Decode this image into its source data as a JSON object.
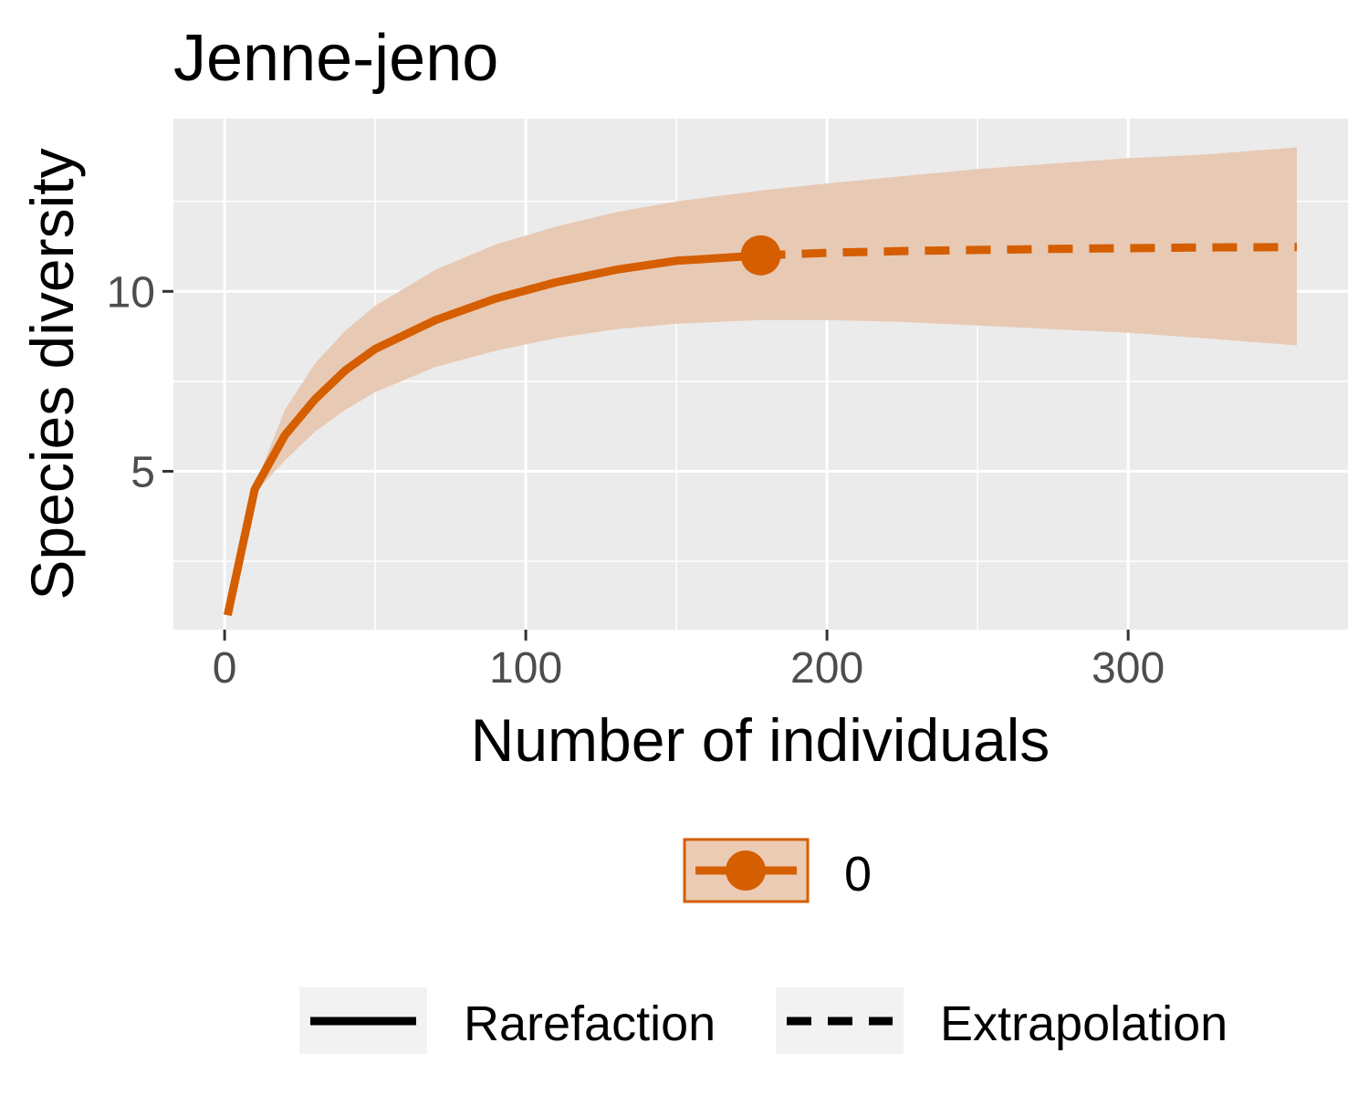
{
  "chart_data": {
    "type": "line",
    "title": "Jenne-jeno",
    "xlabel": "Number of individuals",
    "ylabel": "Species diversity",
    "xlim": [
      -17,
      373
    ],
    "ylim": [
      0.6,
      14.8
    ],
    "x_ticks": [
      0,
      100,
      200,
      300
    ],
    "x_tick_labels": [
      "0",
      "100",
      "200",
      "300"
    ],
    "y_ticks": [
      5,
      10
    ],
    "y_tick_labels": [
      "5",
      "10"
    ],
    "x_minor": [
      50,
      150,
      250
    ],
    "y_minor": [
      2.5,
      7.5,
      12.5
    ],
    "grid": true,
    "color": "#d55e00",
    "ribbon_color": "#e8c9b4",
    "panel_background": "#ebebeb",
    "series": [
      {
        "name": "0",
        "rarefaction": {
          "x": [
            1,
            10,
            20,
            30,
            40,
            50,
            70,
            90,
            110,
            130,
            150,
            178
          ],
          "y": [
            1.0,
            4.5,
            6.0,
            7.0,
            7.8,
            8.4,
            9.2,
            9.8,
            10.25,
            10.6,
            10.85,
            11.0
          ]
        },
        "extrapolation": {
          "x": [
            178,
            200,
            225,
            250,
            275,
            300,
            325,
            356
          ],
          "y": [
            11.0,
            11.07,
            11.12,
            11.15,
            11.18,
            11.2,
            11.22,
            11.23
          ]
        },
        "ribbon": {
          "x": [
            1,
            10,
            20,
            30,
            40,
            50,
            70,
            90,
            110,
            130,
            150,
            178,
            200,
            225,
            250,
            275,
            300,
            325,
            356
          ],
          "lower": [
            1.0,
            4.4,
            5.3,
            6.1,
            6.7,
            7.2,
            7.9,
            8.35,
            8.7,
            8.95,
            9.1,
            9.2,
            9.2,
            9.15,
            9.05,
            8.95,
            8.85,
            8.7,
            8.5
          ],
          "upper": [
            1.0,
            4.6,
            6.7,
            8.0,
            8.9,
            9.6,
            10.6,
            11.3,
            11.8,
            12.2,
            12.5,
            12.8,
            13.0,
            13.2,
            13.4,
            13.55,
            13.7,
            13.8,
            14.0
          ]
        },
        "observed": {
          "x": 178,
          "y": 11.0
        }
      }
    ],
    "legend": {
      "position": "bottom",
      "assemblage_label": "0",
      "method_labels": [
        "Rarefaction",
        "Extrapolation"
      ]
    }
  }
}
